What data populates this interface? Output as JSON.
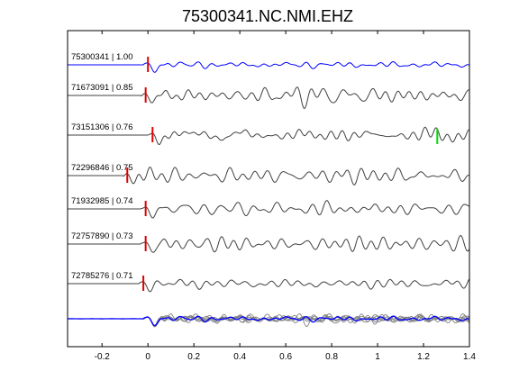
{
  "chart_data": {
    "type": "line",
    "title": "75300341.NC.NMI.EHZ",
    "xlabel": "",
    "ylabel": "",
    "xlim": [
      -0.35,
      1.4
    ],
    "x_ticks": [
      "-0.2",
      "0",
      "0.2",
      "0.4",
      "0.6",
      "0.8",
      "1",
      "1.2",
      "1.4"
    ],
    "x_tick_values": [
      -0.2,
      0,
      0.2,
      0.4,
      0.6,
      0.8,
      1.0,
      1.2,
      1.4
    ],
    "grid": false,
    "legend": "none",
    "trace_color_master": "#0000ff",
    "trace_color_other": "#404040",
    "pick_color_p": "#e00000",
    "pick_color_s": "#00dd00",
    "traces": [
      {
        "label": "75300341 | 1.00",
        "event": "75300341",
        "correlation": 1.0,
        "p_pick": 0.0,
        "color": "#0000ff"
      },
      {
        "label": "71673091 | 0.85",
        "event": "71673091",
        "correlation": 0.85,
        "p_pick": -0.01,
        "color": "#404040"
      },
      {
        "label": "73151306 | 0.76",
        "event": "73151306",
        "correlation": 0.76,
        "p_pick": 0.02,
        "s_pick": 1.26,
        "color": "#404040"
      },
      {
        "label": "72296846 | 0.75",
        "event": "72296846",
        "correlation": 0.75,
        "p_pick": -0.09,
        "color": "#404040"
      },
      {
        "label": "71932985 | 0.74",
        "event": "71932985",
        "correlation": 0.74,
        "p_pick": -0.01,
        "color": "#404040"
      },
      {
        "label": "72757890 | 0.73",
        "event": "72757890",
        "correlation": 0.73,
        "p_pick": -0.01,
        "color": "#404040"
      },
      {
        "label": "72785276 | 0.71",
        "event": "72785276",
        "correlation": 0.71,
        "p_pick": -0.02,
        "color": "#404040"
      }
    ],
    "stack": {
      "description": "overlay of aligned traces",
      "master_color": "#0000ff",
      "other_color": "#808080"
    }
  }
}
